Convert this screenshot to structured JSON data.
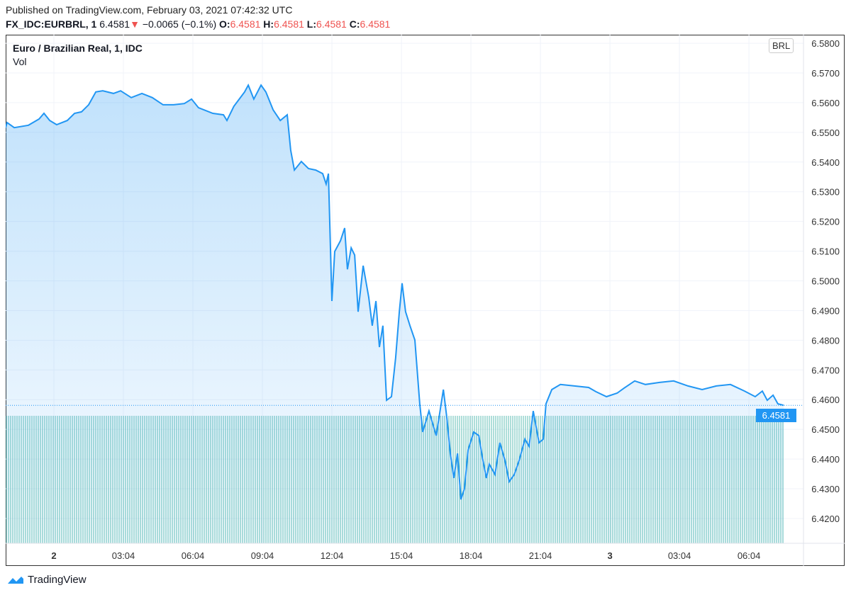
{
  "header": {
    "published": "Published on TradingView.com, February 03, 2021 07:42:32 UTC",
    "symbol": "FX_IDC:EURBRL, 1",
    "last": "6.4581",
    "change": "−0.0065 (−0.1%)",
    "o_label": "O:",
    "o": "6.4581",
    "h_label": "H:",
    "h": "6.4581",
    "l_label": "L:",
    "l": "6.4581",
    "c_label": "C:",
    "c": "6.4581"
  },
  "legend": {
    "title": "Euro / Brazilian Real, 1, IDC",
    "vol": "Vol"
  },
  "currency_button": "BRL",
  "last_price_label": "6.4581",
  "footer": {
    "brand": "TradingView"
  },
  "colors": {
    "line": "#2196f3",
    "volume": "#26a69a",
    "down": "#ef5350"
  },
  "chart_data": {
    "type": "area",
    "title": "Euro / Brazilian Real, 1, IDC",
    "xlabel": "",
    "ylabel": "BRL",
    "ylim": [
      6.4158,
      6.5871
    ],
    "x_unit": "hours since Feb 2 00:04 UTC",
    "x_ticks": [
      {
        "h": 0,
        "label": "2"
      },
      {
        "h": 3,
        "label": "03:04"
      },
      {
        "h": 6,
        "label": "06:04"
      },
      {
        "h": 9,
        "label": "09:04"
      },
      {
        "h": 12,
        "label": "12:04"
      },
      {
        "h": 15,
        "label": "15:04"
      },
      {
        "h": 18,
        "label": "18:04"
      },
      {
        "h": 21,
        "label": "21:04"
      },
      {
        "h": 24,
        "label": "3"
      },
      {
        "h": 27,
        "label": "03:04"
      },
      {
        "h": 30,
        "label": "06:04"
      }
    ],
    "y_ticks": [
      "6.5800",
      "6.5700",
      "6.5600",
      "6.5500",
      "6.5400",
      "6.5300",
      "6.5200",
      "6.5100",
      "6.5000",
      "6.4900",
      "6.4800",
      "6.4700",
      "6.4600",
      "6.4500",
      "6.4400",
      "6.4300",
      "6.4200"
    ],
    "grid": true,
    "last_value": 6.4581,
    "series": [
      {
        "name": "EURBRL",
        "x": [
          -2.08,
          -2.02,
          -1.71,
          -1.1,
          -0.64,
          -0.43,
          -0.18,
          0.12,
          0.58,
          0.89,
          1.19,
          1.5,
          1.81,
          2.11,
          2.57,
          2.88,
          3.34,
          3.8,
          4.25,
          4.71,
          5.17,
          5.63,
          5.94,
          6.24,
          6.86,
          7.32,
          7.47,
          7.77,
          8.23,
          8.39,
          8.63,
          8.94,
          9.15,
          9.46,
          9.77,
          10.07,
          10.22,
          10.38,
          10.68,
          10.99,
          11.3,
          11.6,
          11.75,
          11.85,
          12.0,
          12.12,
          12.37,
          12.55,
          12.67,
          12.83,
          12.98,
          13.13,
          13.35,
          13.59,
          13.74,
          13.9,
          14.05,
          14.2,
          14.36,
          14.57,
          14.75,
          14.91,
          15.03,
          15.18,
          15.37,
          15.58,
          15.79,
          15.92,
          16.19,
          16.5,
          16.81,
          16.96,
          17.11,
          17.26,
          17.42,
          17.57,
          17.72,
          17.88,
          18.12,
          18.34,
          18.49,
          18.67,
          18.79,
          19.04,
          19.25,
          19.47,
          19.65,
          19.87,
          20.08,
          20.33,
          20.51,
          20.69,
          20.94,
          21.12,
          21.24,
          21.49,
          21.86,
          22.47,
          23.08,
          23.39,
          23.85,
          24.31,
          24.61,
          25.07,
          25.53,
          26.14,
          26.75,
          27.37,
          27.98,
          28.59,
          29.2,
          29.81,
          30.27,
          30.58,
          30.79,
          31.04,
          31.25,
          31.5
        ],
        "y": [
          6.5516,
          6.5533,
          6.5516,
          6.5524,
          6.5545,
          6.5564,
          6.554,
          6.5526,
          6.554,
          6.5564,
          6.5569,
          6.5593,
          6.5636,
          6.564,
          6.5631,
          6.564,
          6.5617,
          6.5631,
          6.5617,
          6.5593,
          6.5593,
          6.5597,
          6.5612,
          6.5583,
          6.5564,
          6.5559,
          6.554,
          6.5588,
          6.5636,
          6.5659,
          6.5612,
          6.5659,
          6.5636,
          6.5576,
          6.554,
          6.5559,
          6.544,
          6.5373,
          6.5402,
          6.5378,
          6.5373,
          6.5361,
          6.5326,
          6.5361,
          6.4932,
          6.5099,
          6.5135,
          6.5178,
          6.5039,
          6.5111,
          6.5087,
          6.4896,
          6.5051,
          6.4944,
          6.4849,
          6.4932,
          6.4777,
          6.4849,
          6.4598,
          6.461,
          6.4741,
          6.4896,
          6.4992,
          6.4896,
          6.4849,
          6.4801,
          6.4586,
          6.4491,
          6.4562,
          6.4479,
          6.4634,
          6.4539,
          6.4419,
          6.4336,
          6.4419,
          6.4264,
          6.43,
          6.4431,
          6.4491,
          6.4479,
          6.4407,
          6.4336,
          6.4383,
          6.4348,
          6.4455,
          6.4395,
          6.4324,
          6.4348,
          6.4395,
          6.4467,
          6.4443,
          6.4562,
          6.4455,
          6.4467,
          6.4586,
          6.4634,
          6.4651,
          6.4646,
          6.4641,
          6.4627,
          6.461,
          6.4622,
          6.4639,
          6.4663,
          6.4651,
          6.4658,
          6.4663,
          6.4646,
          6.4634,
          6.4646,
          6.4651,
          6.4629,
          6.461,
          6.4629,
          6.4598,
          6.4615,
          6.4586,
          6.4581
        ]
      }
    ]
  }
}
